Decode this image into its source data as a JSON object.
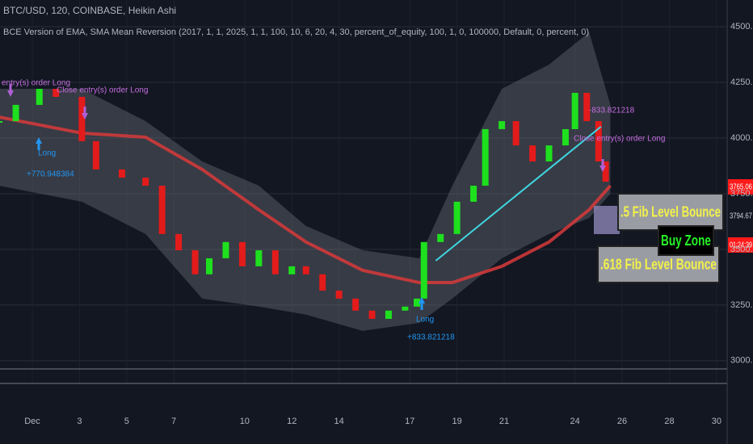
{
  "chart_data": {
    "type": "candlestick",
    "title": "BTC/USD, 120, COINBASE, Heikin Ashi",
    "subtitle": "BCE Version of EMA, SMA Mean Reversion (2017, 1, 1, 2025, 1, 1, 100, 10, 6, 20, 4, 30, percent_of_equity, 100, 1, 0, 100000, Default, 0, percent, 0)",
    "xlim": [
      -0.37,
      30.45
    ],
    "xticks": [
      {
        "value": 1,
        "label": "Dec"
      },
      3,
      5,
      7,
      10,
      12,
      14,
      17,
      19,
      21,
      24,
      26,
      28,
      30
    ],
    "ylim": [
      2916,
      4620
    ],
    "yticks": [
      {
        "value": 3000,
        "label": "3000.00"
      },
      {
        "value": 3250,
        "label": "3250.00"
      },
      {
        "value": 3500,
        "label": "3500.00"
      },
      {
        "value": 3750,
        "label": "3750.00"
      },
      {
        "value": 4000,
        "label": "4000.00"
      },
      {
        "value": 4250,
        "label": "4250.00"
      },
      {
        "value": 4500,
        "label": "4500.00"
      }
    ],
    "grid": true,
    "up_color": "#1ee01e",
    "down_color": "#e31b1b",
    "series": [
      {
        "x": [
          -0.4,
          0.3,
          1.3,
          2.0,
          3.1,
          3.7,
          4.8,
          5.8,
          6.5,
          7.2,
          7.9,
          8.5,
          9.2,
          9.9,
          10.6,
          11.3,
          12.0,
          12.6,
          13.3,
          14.0,
          14.7,
          15.4,
          16.1,
          16.8,
          17.3,
          17.6,
          18.3,
          19.0,
          19.7,
          20.2,
          20.9,
          21.5,
          22.2,
          22.9,
          23.6,
          24.0,
          24.5,
          25.0,
          25.3
        ],
        "values": [
          4076,
          4149,
          4221,
          4185,
          3986,
          3859,
          3822,
          3786,
          3569,
          3496,
          3388,
          3460,
          3533,
          3424,
          3496,
          3388,
          3424,
          3388,
          3315,
          3279,
          3225,
          3188,
          3225,
          3243,
          3279,
          3533,
          3569,
          3714,
          3786,
          4040,
          4076,
          3967,
          3895,
          3967,
          4040,
          4203,
          4076,
          3895,
          3804
        ]
      },
      {
        "x": [
          -0.4,
          3.1,
          5.8,
          8.2,
          10.6,
          12.6,
          15.0,
          17.4,
          18.8,
          20.9,
          22.9,
          24.6,
          25.5
        ],
        "values": [
          4094,
          4022,
          4004,
          3859,
          3678,
          3533,
          3406,
          3351,
          3351,
          3424,
          3533,
          3678,
          3786
        ],
        "color": "#d83a3a"
      },
      {
        "x": [
          -0.4,
          3.1,
          5.8,
          8.2,
          10.6,
          12.6,
          15.0,
          17.4,
          18.8,
          20.9,
          22.9,
          24.6,
          25.5
        ],
        "values": [
          4221,
          4221,
          4076,
          3895,
          3786,
          3605,
          3496,
          3460,
          3786,
          4221,
          4330,
          4475,
          4149
        ],
        "color": "#7a7d88"
      },
      {
        "x": [
          -0.4,
          3.1,
          5.8,
          8.2,
          10.6,
          12.6,
          15.0,
          17.4,
          18.8,
          20.9,
          22.9,
          24.6,
          25.5
        ],
        "values": [
          3786,
          3714,
          3569,
          3279,
          3243,
          3207,
          3134,
          3170,
          3279,
          3460,
          3569,
          3641,
          3750
        ],
        "color": "#7a7d88"
      }
    ],
    "trendline": {
      "x": [
        18.1,
        25.1
      ],
      "values": [
        3449,
        4051
      ],
      "color": "#3fd6e0"
    },
    "annotations": [
      "entry(s) order Long",
      "Close entry(s) order Long",
      "Long",
      "+770.948384",
      "Long",
      "+833.821218",
      "-833.821218",
      "Close entry(s) order Long"
    ],
    "zones": [
      ".5 Fib Level Bounce",
      ".618 Fib Level Bounce",
      "Buy Zone"
    ],
    "price_labels": [
      3765.06,
      3794.67,
      "01:24:39"
    ]
  }
}
